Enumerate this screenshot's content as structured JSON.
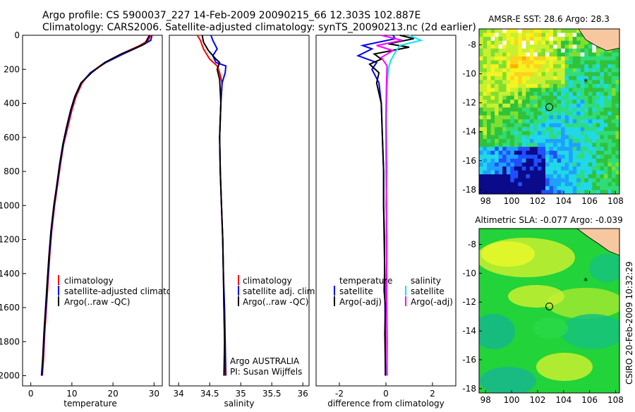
{
  "title_line1": "Argo profile: CS 5900037_227 14-Feb-2009 20090215_66 12.303S 102.887E",
  "title_line2": "Climatology: CARS2006. Satellite-adjusted climatology: synTS_20090213.nc (2d earlier)",
  "side_label": "CSIRO 20-Feb-2009 10:32:29",
  "colors": {
    "red": "#ff0000",
    "blue": "#0000ff",
    "black": "#000000",
    "cyan": "#00e5ff",
    "magenta": "#ff00ff",
    "land": "#f7c8a0"
  },
  "chart_data": [
    {
      "type": "line",
      "xlabel": "temperature",
      "ylabel": "",
      "xlim": [
        -2,
        32
      ],
      "ylim": [
        2060,
        0
      ],
      "xticks": [
        "0",
        "10",
        "20",
        "30"
      ],
      "yticks": [
        "0",
        "200",
        "400",
        "600",
        "800",
        "1000",
        "1200",
        "1400",
        "1600",
        "1800",
        "2000"
      ],
      "legend": [
        {
          "label": "climatology",
          "color": "red"
        },
        {
          "label": "satellite-adjusted climatology",
          "color": "blue"
        },
        {
          "label": "Argo(..raw -QC)",
          "color": "black"
        }
      ],
      "series": [
        {
          "name": "climatology",
          "color": "red",
          "points": [
            [
              29.2,
              0
            ],
            [
              28.6,
              30
            ],
            [
              26.5,
              60
            ],
            [
              22,
              110
            ],
            [
              18,
              160
            ],
            [
              14.5,
              220
            ],
            [
              12.5,
              280
            ],
            [
              11,
              360
            ],
            [
              10,
              440
            ],
            [
              9,
              540
            ],
            [
              8,
              640
            ],
            [
              7.2,
              760
            ],
            [
              6.4,
              900
            ],
            [
              5.8,
              1000
            ],
            [
              5.1,
              1150
            ],
            [
              4.6,
              1300
            ],
            [
              4.2,
              1450
            ],
            [
              3.8,
              1600
            ],
            [
              3.4,
              1750
            ],
            [
              3.1,
              1900
            ],
            [
              2.8,
              2000
            ]
          ]
        },
        {
          "name": "satellite-adjusted climatology",
          "color": "blue",
          "points": [
            [
              29.5,
              0
            ],
            [
              29.2,
              30
            ],
            [
              27,
              60
            ],
            [
              22.5,
              110
            ],
            [
              18.3,
              160
            ],
            [
              14.5,
              220
            ],
            [
              12.3,
              280
            ],
            [
              10.8,
              360
            ],
            [
              9.8,
              440
            ],
            [
              8.8,
              540
            ],
            [
              7.9,
              640
            ],
            [
              7.1,
              760
            ],
            [
              6.3,
              900
            ],
            [
              5.7,
              1000
            ],
            [
              5,
              1150
            ],
            [
              4.5,
              1300
            ],
            [
              4.1,
              1450
            ],
            [
              3.7,
              1600
            ],
            [
              3.3,
              1750
            ],
            [
              3,
              1900
            ],
            [
              2.7,
              2000
            ]
          ]
        },
        {
          "name": "Argo(..raw -QC)",
          "color": "black",
          "points": [
            [
              28.9,
              0
            ],
            [
              28.3,
              25
            ],
            [
              27.8,
              50
            ],
            [
              25,
              80
            ],
            [
              22,
              110
            ],
            [
              18,
              160
            ],
            [
              14.8,
              220
            ],
            [
              12.2,
              280
            ],
            [
              10.7,
              360
            ],
            [
              9.7,
              440
            ],
            [
              8.7,
              540
            ],
            [
              7.8,
              640
            ],
            [
              7,
              760
            ],
            [
              6.2,
              900
            ],
            [
              5.6,
              1000
            ],
            [
              4.9,
              1150
            ],
            [
              4.4,
              1300
            ],
            [
              4,
              1450
            ],
            [
              3.6,
              1600
            ],
            [
              3.2,
              1750
            ],
            [
              2.9,
              1900
            ],
            [
              2.6,
              2000
            ]
          ]
        }
      ]
    },
    {
      "type": "line",
      "xlabel": "salinity",
      "xlim": [
        33.85,
        36.1
      ],
      "ylim": [
        2060,
        0
      ],
      "xticks": [
        "34",
        "34.5",
        "35",
        "35.5",
        "36"
      ],
      "legend": [
        {
          "label": "climatology",
          "color": "red"
        },
        {
          "label": "satellite adj. clim.",
          "color": "blue"
        },
        {
          "label": "Argo(..raw -QC)",
          "color": "black"
        }
      ],
      "annotation": [
        "Argo AUSTRALIA",
        "PI: Susan Wijffels"
      ],
      "series": [
        {
          "name": "climatology",
          "color": "red",
          "points": [
            [
              34.3,
              0
            ],
            [
              34.35,
              30
            ],
            [
              34.4,
              80
            ],
            [
              34.5,
              140
            ],
            [
              34.62,
              180
            ],
            [
              34.66,
              220
            ],
            [
              34.7,
              280
            ],
            [
              34.68,
              400
            ],
            [
              34.66,
              600
            ],
            [
              34.67,
              800
            ],
            [
              34.69,
              1000
            ],
            [
              34.71,
              1200
            ],
            [
              34.72,
              1400
            ],
            [
              34.73,
              1600
            ],
            [
              34.74,
              1800
            ],
            [
              34.74,
              2000
            ]
          ]
        },
        {
          "name": "satellite adj. clim.",
          "color": "blue",
          "points": [
            [
              34.52,
              0
            ],
            [
              34.55,
              30
            ],
            [
              34.62,
              80
            ],
            [
              34.55,
              120
            ],
            [
              34.6,
              160
            ],
            [
              34.76,
              180
            ],
            [
              34.75,
              220
            ],
            [
              34.7,
              280
            ],
            [
              34.68,
              400
            ],
            [
              34.66,
              600
            ],
            [
              34.67,
              800
            ],
            [
              34.69,
              1000
            ],
            [
              34.71,
              1200
            ],
            [
              34.72,
              1400
            ],
            [
              34.74,
              1600
            ],
            [
              34.75,
              1800
            ],
            [
              34.76,
              2000
            ]
          ]
        },
        {
          "name": "Argo(..raw -QC)",
          "color": "black",
          "points": [
            [
              34.38,
              0
            ],
            [
              34.4,
              40
            ],
            [
              34.48,
              90
            ],
            [
              34.6,
              140
            ],
            [
              34.66,
              160
            ],
            [
              34.62,
              200
            ],
            [
              34.66,
              260
            ],
            [
              34.68,
              400
            ],
            [
              34.66,
              600
            ],
            [
              34.67,
              800
            ],
            [
              34.69,
              1000
            ],
            [
              34.71,
              1200
            ],
            [
              34.72,
              1400
            ],
            [
              34.73,
              1600
            ],
            [
              34.74,
              1800
            ],
            [
              34.73,
              2000
            ]
          ]
        }
      ]
    },
    {
      "type": "line",
      "xlabel": "difference from climatology",
      "xlim": [
        -3,
        3
      ],
      "ylim": [
        2060,
        0
      ],
      "xticks": [
        "-2",
        "0",
        "2"
      ],
      "legend_left_title": "temperature",
      "legend_right_title": "salinity",
      "legend": [
        {
          "label": "satellite",
          "color": "blue"
        },
        {
          "label": "Argo(-adj)",
          "color": "black"
        },
        {
          "label": "satellite",
          "color": "cyan"
        },
        {
          "label": "Argo(-adj)",
          "color": "magenta"
        }
      ],
      "series": [
        {
          "name": "temperature satellite",
          "color": "blue",
          "points": [
            [
              0.3,
              0
            ],
            [
              0.4,
              20
            ],
            [
              -1,
              60
            ],
            [
              -0.6,
              80
            ],
            [
              -1.2,
              120
            ],
            [
              -0.4,
              160
            ],
            [
              -0.6,
              200
            ],
            [
              -0.3,
              280
            ],
            [
              -0.2,
              400
            ],
            [
              -0.15,
              600
            ],
            [
              -0.1,
              800
            ],
            [
              -0.1,
              1000
            ],
            [
              -0.08,
              1200
            ],
            [
              -0.05,
              1400
            ],
            [
              -0.04,
              1600
            ],
            [
              -0.03,
              1800
            ],
            [
              -0.02,
              2000
            ]
          ]
        },
        {
          "name": "temperature Argo(-adj)",
          "color": "black",
          "points": [
            [
              0.6,
              0
            ],
            [
              1.2,
              20
            ],
            [
              0.1,
              50
            ],
            [
              1,
              70
            ],
            [
              -0.5,
              110
            ],
            [
              -0.2,
              140
            ],
            [
              -0.7,
              170
            ],
            [
              -0.3,
              220
            ],
            [
              -0.4,
              280
            ],
            [
              -0.2,
              400
            ],
            [
              -0.15,
              600
            ],
            [
              -0.1,
              800
            ],
            [
              -0.1,
              1000
            ],
            [
              -0.06,
              1200
            ],
            [
              -0.06,
              1400
            ],
            [
              -0.08,
              1500
            ],
            [
              -0.02,
              1600
            ],
            [
              -0.05,
              1750
            ],
            [
              -0.03,
              1900
            ],
            [
              -0.02,
              2000
            ]
          ]
        },
        {
          "name": "salinity satellite",
          "color": "cyan",
          "points": [
            [
              1,
              0
            ],
            [
              1.5,
              30
            ],
            [
              0.6,
              60
            ],
            [
              0.4,
              100
            ],
            [
              0.2,
              150
            ],
            [
              0.1,
              200
            ],
            [
              0.05,
              300
            ],
            [
              0.02,
              500
            ],
            [
              0.05,
              800
            ],
            [
              0,
              1000
            ],
            [
              0.05,
              1200
            ],
            [
              0.02,
              1500
            ],
            [
              0.06,
              1800
            ],
            [
              0.04,
              2000
            ]
          ]
        },
        {
          "name": "salinity Argo(-adj)",
          "color": "magenta",
          "points": [
            [
              -0.2,
              0
            ],
            [
              0.7,
              30
            ],
            [
              -0.4,
              60
            ],
            [
              0.3,
              90
            ],
            [
              -0.2,
              130
            ],
            [
              0.05,
              180
            ],
            [
              0.02,
              300
            ],
            [
              0,
              500
            ],
            [
              0.02,
              1000
            ],
            [
              0.03,
              1500
            ],
            [
              0.05,
              2000
            ]
          ]
        }
      ]
    },
    {
      "type": "heatmap",
      "title": "AMSR-E SST: 28.6 Argo: 28.3",
      "xlim": [
        97.5,
        108.3
      ],
      "ylim": [
        -18.3,
        -6.9
      ],
      "xticks": [
        "98",
        "100",
        "102",
        "104",
        "106",
        "108"
      ],
      "yticks": [
        "-8",
        "-10",
        "-12",
        "-14",
        "-16",
        "-18"
      ],
      "argo_position": [
        102.9,
        -12.3
      ],
      "star_position": [
        105.7,
        -10.5
      ]
    },
    {
      "type": "heatmap",
      "title": "Altimetric SLA: -0.077 Argo: -0.039",
      "xlim": [
        97.5,
        108.3
      ],
      "ylim": [
        -18.3,
        -6.9
      ],
      "xticks": [
        "98",
        "100",
        "102",
        "104",
        "106",
        "108"
      ],
      "yticks": [
        "-8",
        "-10",
        "-12",
        "-14",
        "-16",
        "-18"
      ],
      "argo_position": [
        102.9,
        -12.3
      ],
      "star_position": [
        105.7,
        -10.5
      ]
    }
  ]
}
